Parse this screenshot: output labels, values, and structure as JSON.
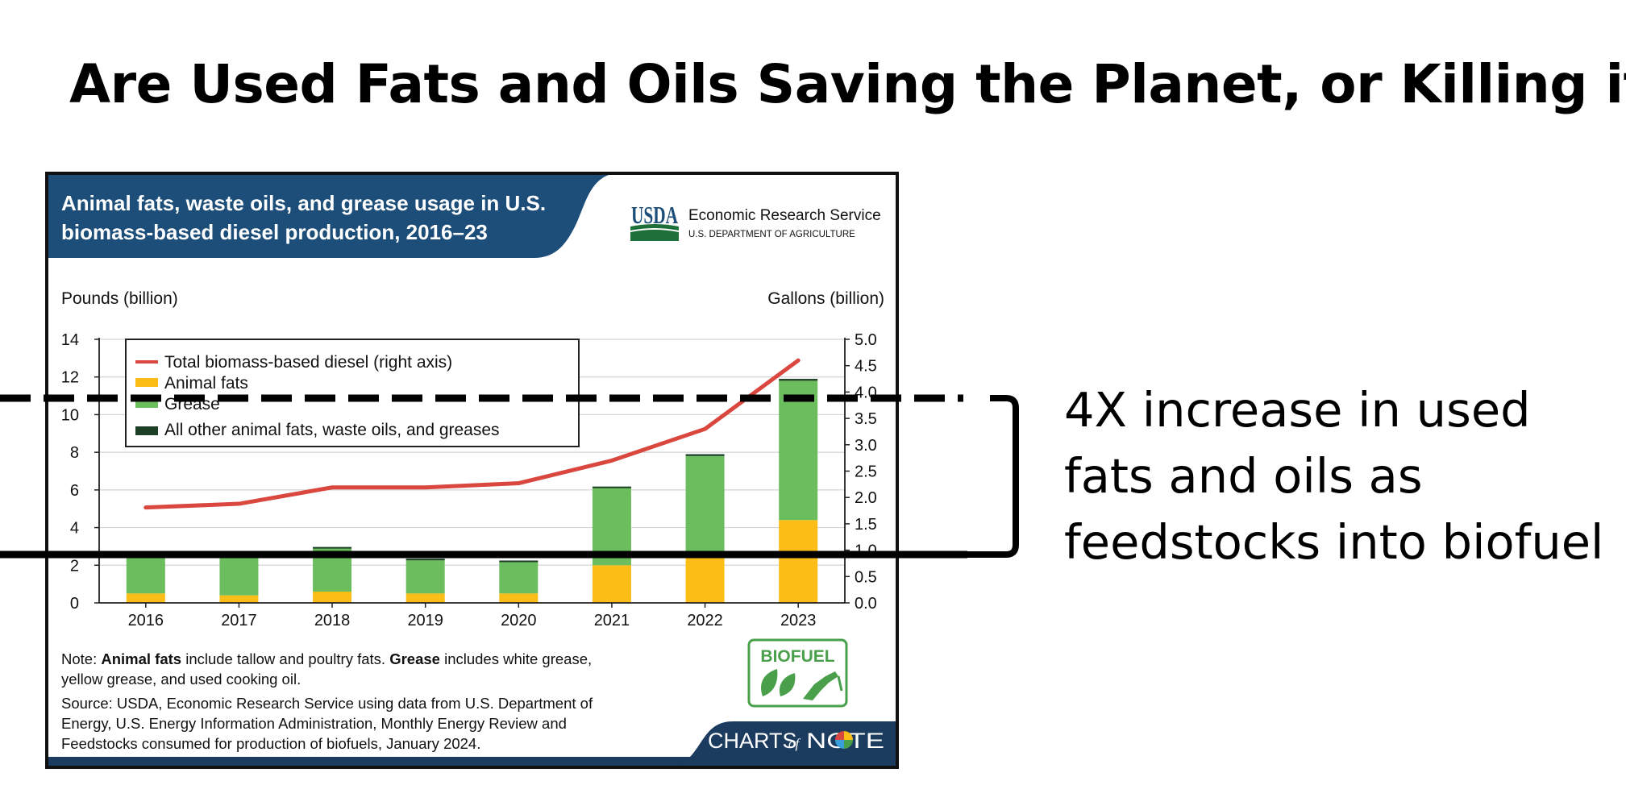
{
  "slide": {
    "title": "Are Used Fats and Oils Saving the Planet, or Killing it?",
    "annotation_lines": [
      "4X increase in used",
      "fats and oils as",
      "feedstocks into biofuel"
    ]
  },
  "figure": {
    "header_title_lines": [
      "Animal fats, waste oils, and grease usage in U.S.",
      "biomass-based diesel production, 2016–23"
    ],
    "usda_mark": "USDA",
    "agency_name": "Economic Research Service",
    "agency_dept": "U.S. DEPARTMENT OF AGRICULTURE",
    "note_lines": [
      [
        {
          "text": "Note: ",
          "bold": false
        },
        {
          "text": "Animal fats",
          "bold": true
        },
        {
          "text": " include tallow and poultry fats. ",
          "bold": false
        },
        {
          "text": "Grease",
          "bold": true
        },
        {
          "text": " includes white grease,",
          "bold": false
        }
      ],
      [
        {
          "text": "yellow grease, and used cooking oil.",
          "bold": false
        }
      ]
    ],
    "source_lines": [
      "Source: USDA, Economic Research Service using data from U.S. Department of",
      "Energy, U.S. Energy Information Administration, Monthly Energy Review and",
      "Feedstocks consumed for production of biofuels, January 2024."
    ],
    "badge_text": "BIOFUEL",
    "brand": {
      "charts": "CHARTS",
      "of": "of",
      "note": "NOTE"
    }
  },
  "colors": {
    "header_bg": "#1d4e79",
    "footer_bg": "#1b3c5e",
    "animal_fats": "#fbbd16",
    "grease": "#6cbd5e",
    "other": "#1d3f26",
    "line": "#d9473f",
    "biofuel_green": "#4aa04a"
  },
  "chart_data": {
    "type": "bar",
    "stacked": true,
    "categories": [
      "2016",
      "2017",
      "2018",
      "2019",
      "2020",
      "2021",
      "2022",
      "2023"
    ],
    "left_axis": {
      "label": "Pounds (billion)",
      "min": 0,
      "max": 14,
      "ticks": [
        "0",
        "2",
        "4",
        "6",
        "8",
        "10",
        "12",
        "14"
      ]
    },
    "right_axis": {
      "label": "Gallons (billion)",
      "min": 0,
      "max": 5.0,
      "ticks": [
        "0.0",
        "0.5",
        "1.0",
        "1.5",
        "2.0",
        "2.5",
        "3.0",
        "3.5",
        "4.0",
        "4.5",
        "5.0"
      ]
    },
    "grid": true,
    "legend_position": "top-left",
    "series": [
      {
        "name": "Animal fats",
        "kind": "bar",
        "axis": "left",
        "values": [
          0.5,
          0.4,
          0.6,
          0.5,
          0.5,
          2.0,
          2.5,
          4.4
        ]
      },
      {
        "name": "Grease",
        "kind": "bar",
        "axis": "left",
        "values": [
          2.0,
          2.2,
          2.3,
          1.8,
          1.7,
          4.1,
          5.3,
          7.4
        ]
      },
      {
        "name": "All other animal fats, waste oils, and greases",
        "kind": "bar",
        "axis": "left",
        "values": [
          0.06,
          0.06,
          0.07,
          0.05,
          0.05,
          0.08,
          0.1,
          0.1
        ]
      },
      {
        "name": "Total biomass-based diesel (right axis)",
        "kind": "line",
        "axis": "right",
        "values": [
          1.81,
          1.88,
          2.19,
          2.19,
          2.27,
          2.7,
          3.3,
          4.6
        ]
      }
    ],
    "legend_order": [
      "Total biomass-based diesel (right axis)",
      "Animal fats",
      "Grease",
      "All other animal fats, waste oils, and greases"
    ]
  }
}
